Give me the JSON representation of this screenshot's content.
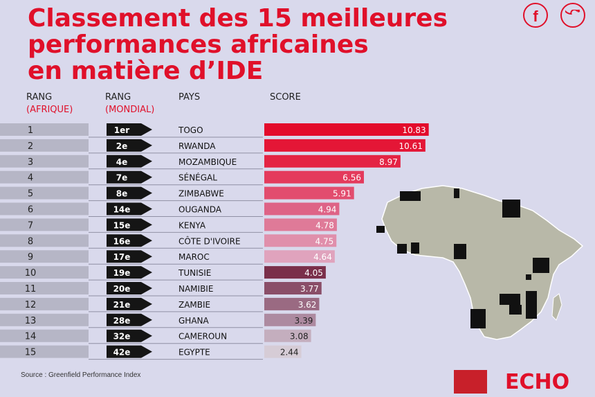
{
  "title_lines": [
    "Classement des 15 meilleures",
    "performances africaines",
    "en matière d’IDE"
  ],
  "social": {
    "facebook_icon": "f",
    "twitter_icon": "twitter-bird"
  },
  "headers": {
    "rank_africa": "RANG",
    "rank_africa_sub": "(AFRIQUE)",
    "rank_world": "RANG",
    "rank_world_sub": "(MONDIAL)",
    "country": "PAYS",
    "score": "SCORE"
  },
  "source": "Source : Greenfield Performance Index",
  "brand": "ECHO",
  "chart_data": {
    "type": "bar",
    "rank_africa": [
      "1",
      "2",
      "3",
      "4",
      "5",
      "6",
      "7",
      "8",
      "9",
      "10",
      "11",
      "12",
      "13",
      "14",
      "15"
    ],
    "rank_world": [
      "1er",
      "2e",
      "4e",
      "7e",
      "8e",
      "14e",
      "15e",
      "16e",
      "17e",
      "19e",
      "20e",
      "21e",
      "28e",
      "32e",
      "42e"
    ],
    "categories": [
      "TOGO",
      "RWANDA",
      "MOZAMBIQUE",
      "SÉNÉGAL",
      "ZIMBABWE",
      "OUGANDA",
      "KENYA",
      "CÔTE D'IVOIRE",
      "MAROC",
      "TUNISIE",
      "NAMIBIE",
      "ZAMBIE",
      "GHANA",
      "CAMEROUN",
      "EGYPTE"
    ],
    "values": [
      10.83,
      10.61,
      8.97,
      6.56,
      5.91,
      4.94,
      4.78,
      4.75,
      4.64,
      4.05,
      3.77,
      3.62,
      3.39,
      3.08,
      2.44
    ],
    "value_labels": [
      "10.83",
      "10.61",
      "8.97",
      "6.56",
      "5.91",
      "4.94",
      "4.78",
      "4.75",
      "4.64",
      "4.05",
      "3.77",
      "3.62",
      "3.39",
      "3.08",
      "2.44"
    ],
    "xlim": [
      0,
      11.3
    ],
    "colors": [
      "#e30b2b",
      "#e41636",
      "#e42444",
      "#e43a5c",
      "#e24d6e",
      "#de6386",
      "#df7a98",
      "#e08fab",
      "#e0a3bd",
      "#7a2f4a",
      "#8a4e68",
      "#9a6a82",
      "#ad8aa0",
      "#c4aebe",
      "#d6ccd6"
    ],
    "highlight_countries": [
      "TOGO",
      "RWANDA",
      "MOZAMBIQUE",
      "SÉNÉGAL",
      "ZIMBABWE",
      "OUGANDA",
      "KENYA",
      "CÔTE D'IVOIRE",
      "MAROC",
      "TUNISIE",
      "NAMIBIE",
      "ZAMBIE",
      "GHANA",
      "CAMEROUN",
      "EGYPTE"
    ]
  }
}
